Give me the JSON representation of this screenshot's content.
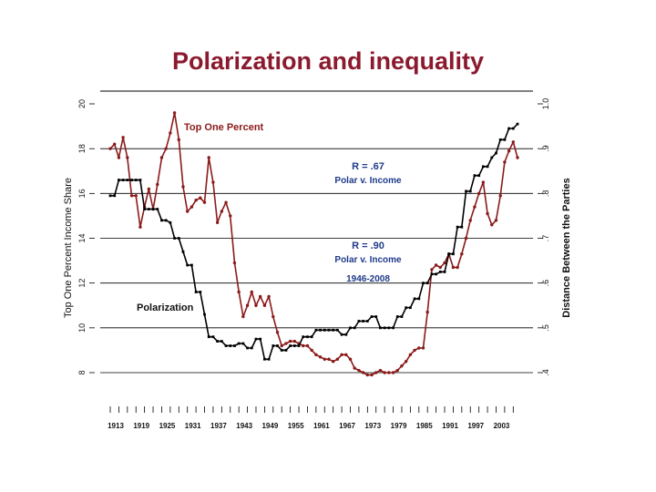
{
  "slide": {
    "title": "Polarization and inequality"
  },
  "chart_data": {
    "type": "line",
    "title": "",
    "ylabel_left": "Top One Percent Income Share",
    "ylabel_right": "Distance Between the Parties",
    "ylim_left": [
      8,
      20
    ],
    "ylim_right": [
      0.4,
      1.0
    ],
    "xlim": [
      1913,
      2008
    ],
    "x_tick_labels": [
      "1913",
      "1919",
      "1925",
      "1931",
      "1937",
      "1943",
      "1949",
      "1955",
      "1961",
      "1967",
      "1973",
      "1979",
      "1985",
      "1991",
      "1997",
      "2003"
    ],
    "left_ticks": [
      "8",
      "10",
      "12",
      "14",
      "16",
      "18",
      "20"
    ],
    "right_ticks": [
      ".4",
      ".5",
      ".6",
      ".7",
      ".8",
      ".9",
      "1.0"
    ],
    "grid": true,
    "colors": {
      "top_one_percent": "#8b1a1a",
      "polarization": "#000000",
      "title": "#8b1a2e"
    },
    "annotations": {
      "top_one_percent_label": "Top One Percent",
      "polarization_label": "Polarization",
      "r1_line1": "R = .67",
      "r1_line2": "Polar v. Income",
      "r2_line1": "R = .90",
      "r2_line2": "Polar v. Income",
      "r2_line3": "1946-2008"
    },
    "series": [
      {
        "key": "top_one_percent",
        "axis": "left",
        "x": [
          1913,
          1914,
          1915,
          1916,
          1917,
          1918,
          1919,
          1920,
          1921,
          1922,
          1923,
          1924,
          1925,
          1926,
          1927,
          1928,
          1929,
          1930,
          1931,
          1932,
          1933,
          1934,
          1935,
          1936,
          1937,
          1938,
          1939,
          1940,
          1941,
          1942,
          1943,
          1944,
          1945,
          1946,
          1947,
          1948,
          1949,
          1950,
          1951,
          1952,
          1953,
          1954,
          1955,
          1956,
          1957,
          1958,
          1959,
          1960,
          1961,
          1962,
          1963,
          1964,
          1965,
          1966,
          1967,
          1968,
          1969,
          1970,
          1971,
          1972,
          1973,
          1974,
          1975,
          1976,
          1977,
          1978,
          1979,
          1980,
          1981,
          1982,
          1983,
          1984,
          1985,
          1986,
          1987,
          1988,
          1989,
          1990,
          1991,
          1992,
          1993,
          1994,
          1995,
          1996,
          1997,
          1998,
          1999,
          2000,
          2001,
          2002,
          2003,
          2004,
          2005,
          2006,
          2007,
          2008
        ],
        "values": [
          18.0,
          18.2,
          17.6,
          18.5,
          17.6,
          15.9,
          15.9,
          14.5,
          15.4,
          16.2,
          15.3,
          16.4,
          17.6,
          18.0,
          18.7,
          19.6,
          18.4,
          16.3,
          15.2,
          15.4,
          15.7,
          15.8,
          15.6,
          17.6,
          16.5,
          14.7,
          15.2,
          15.6,
          15.0,
          12.9,
          11.6,
          10.5,
          11.0,
          11.6,
          11.0,
          11.4,
          11.0,
          11.4,
          10.5,
          9.8,
          9.2,
          9.3,
          9.4,
          9.4,
          9.3,
          9.2,
          9.2,
          9.0,
          8.8,
          8.7,
          8.6,
          8.6,
          8.5,
          8.6,
          8.8,
          8.8,
          8.6,
          8.2,
          8.1,
          8.0,
          7.9,
          7.9,
          8.0,
          8.1,
          8.0,
          8.0,
          8.0,
          8.1,
          8.3,
          8.5,
          8.8,
          9.0,
          9.1,
          9.1,
          10.7,
          12.6,
          12.8,
          12.7,
          12.9,
          13.3,
          12.7,
          12.7,
          13.3,
          14.0,
          14.8,
          15.4,
          16.0,
          16.5,
          15.1,
          14.6,
          14.8,
          15.9,
          17.4,
          17.9,
          18.3,
          17.6
        ]
      },
      {
        "key": "polarization",
        "axis": "right",
        "x": [
          1913,
          1914,
          1915,
          1916,
          1917,
          1918,
          1919,
          1920,
          1921,
          1922,
          1923,
          1924,
          1925,
          1926,
          1927,
          1928,
          1929,
          1930,
          1931,
          1932,
          1933,
          1934,
          1935,
          1936,
          1937,
          1938,
          1939,
          1940,
          1941,
          1942,
          1943,
          1944,
          1945,
          1946,
          1947,
          1948,
          1949,
          1950,
          1951,
          1952,
          1953,
          1954,
          1955,
          1956,
          1957,
          1958,
          1959,
          1960,
          1961,
          1962,
          1963,
          1964,
          1965,
          1966,
          1967,
          1968,
          1969,
          1970,
          1971,
          1972,
          1973,
          1974,
          1975,
          1976,
          1977,
          1978,
          1979,
          1980,
          1981,
          1982,
          1983,
          1984,
          1985,
          1986,
          1987,
          1988,
          1989,
          1990,
          1991,
          1992,
          1993,
          1994,
          1995,
          1996,
          1997,
          1998,
          1999,
          2000,
          2001,
          2002,
          2003,
          2004,
          2005,
          2006,
          2007,
          2008
        ],
        "values": [
          0.795,
          0.795,
          0.83,
          0.83,
          0.83,
          0.83,
          0.83,
          0.83,
          0.765,
          0.765,
          0.765,
          0.765,
          0.74,
          0.74,
          0.735,
          0.7,
          0.7,
          0.67,
          0.64,
          0.64,
          0.58,
          0.58,
          0.53,
          0.48,
          0.48,
          0.47,
          0.47,
          0.46,
          0.46,
          0.46,
          0.465,
          0.465,
          0.455,
          0.455,
          0.475,
          0.475,
          0.43,
          0.43,
          0.46,
          0.46,
          0.45,
          0.45,
          0.46,
          0.46,
          0.46,
          0.48,
          0.48,
          0.48,
          0.495,
          0.495,
          0.495,
          0.495,
          0.495,
          0.495,
          0.485,
          0.485,
          0.5,
          0.5,
          0.515,
          0.515,
          0.515,
          0.525,
          0.525,
          0.5,
          0.5,
          0.5,
          0.5,
          0.525,
          0.525,
          0.545,
          0.545,
          0.565,
          0.565,
          0.6,
          0.6,
          0.62,
          0.62,
          0.625,
          0.625,
          0.665,
          0.665,
          0.725,
          0.725,
          0.805,
          0.805,
          0.84,
          0.84,
          0.86,
          0.86,
          0.88,
          0.89,
          0.92,
          0.92,
          0.945,
          0.945,
          0.955
        ]
      }
    ]
  }
}
